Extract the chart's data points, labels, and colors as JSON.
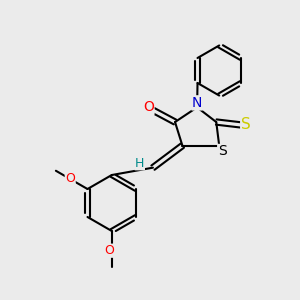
{
  "background_color": "#ebebeb",
  "atom_colors": {
    "O": "#ff0000",
    "N": "#0000cd",
    "S_thioxo": "#cccc00",
    "S_ring": "#000000",
    "H": "#008b8b",
    "C": "#000000"
  },
  "line_width": 1.5,
  "figsize": [
    3.0,
    3.0
  ],
  "dpi": 100
}
